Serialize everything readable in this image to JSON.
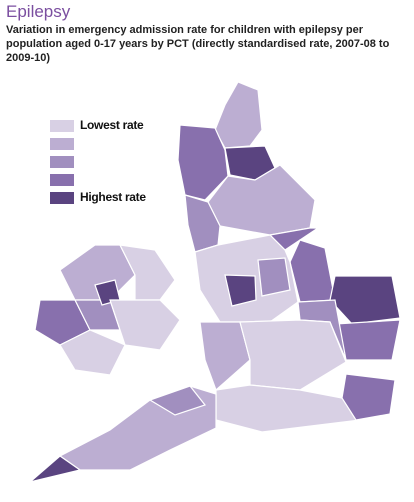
{
  "header": {
    "title": "Epilepsy",
    "subtitle": "Variation in emergency admission rate for children with epilepsy per population aged 0-17 years by PCT (directly standardised rate, 2007-08 to 2009-10)"
  },
  "legend": {
    "items": [
      {
        "label": "Lowest rate",
        "color": "#d8d0e4"
      },
      {
        "color": "#bcaed2"
      },
      {
        "color": "#a18fbf"
      },
      {
        "color": "#8870ad"
      },
      {
        "label": "Highest rate",
        "color": "#5a4480"
      }
    ]
  }
}
